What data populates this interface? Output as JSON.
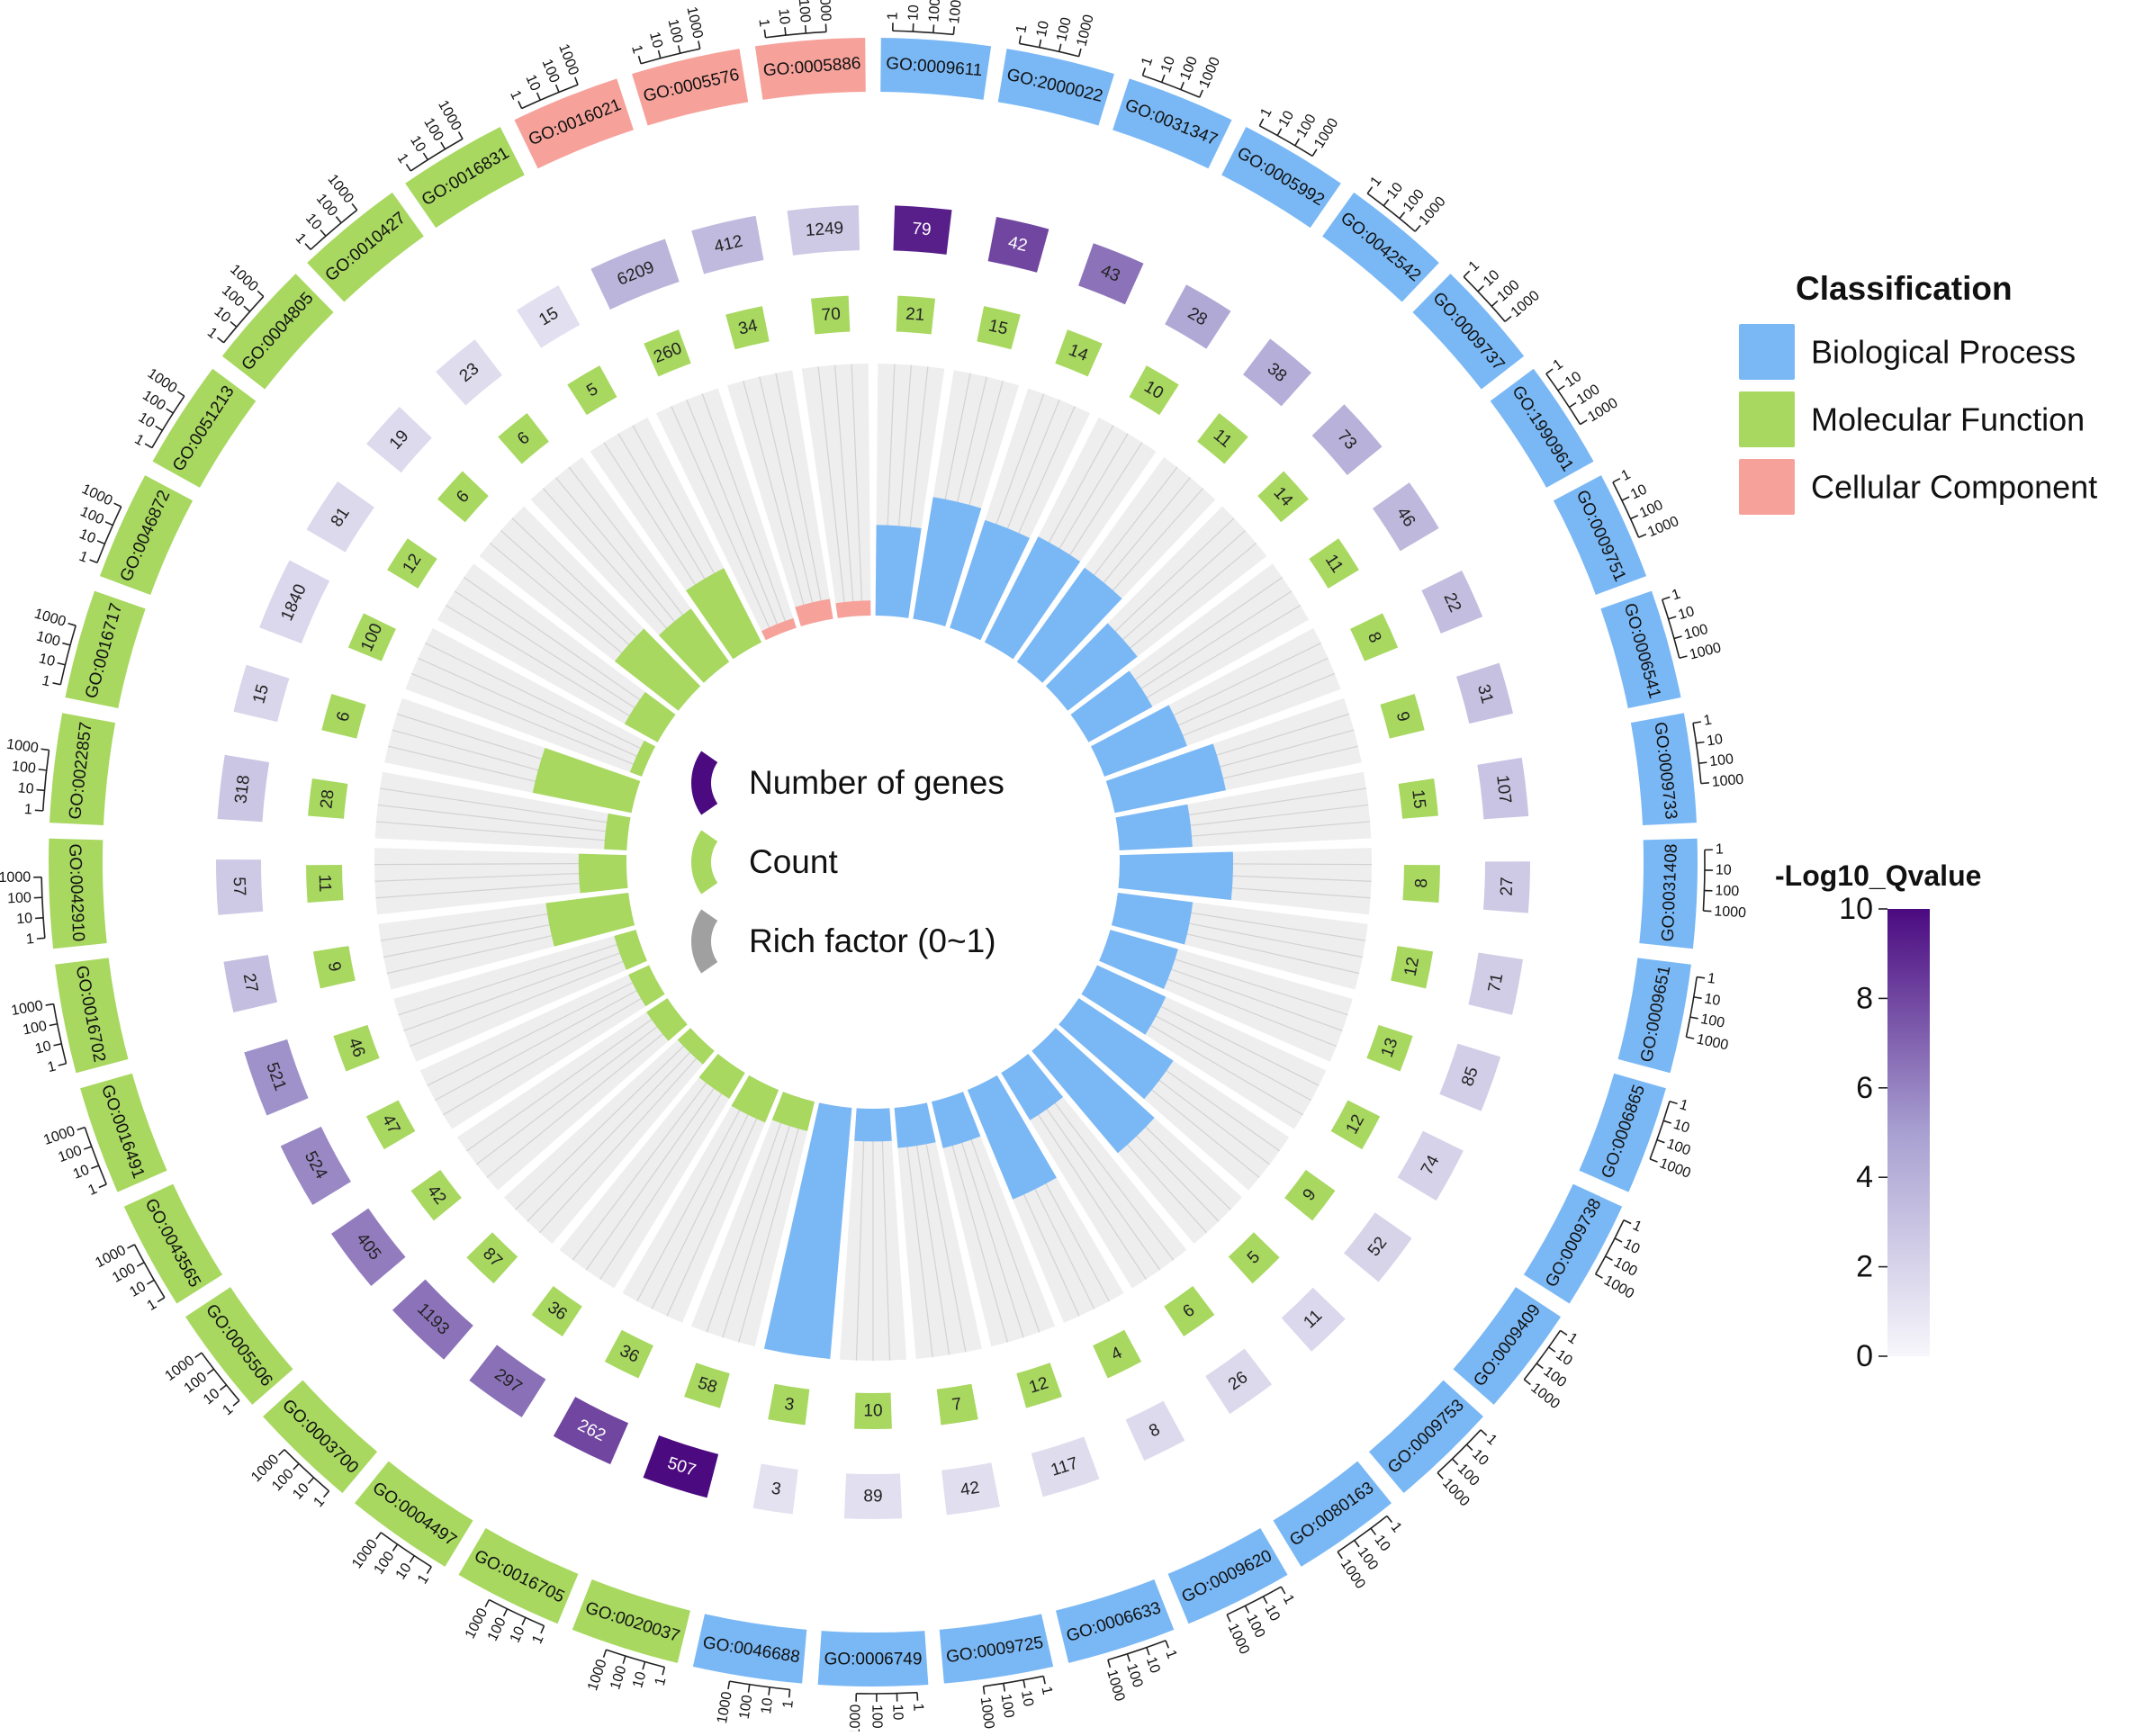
{
  "chart_data": {
    "type": "circular-bar",
    "tick_labels": [
      "1",
      "10",
      "100",
      "1000"
    ],
    "terms": [
      {
        "id": "GO:0009611",
        "class": "Biological Process",
        "number_of_genes": 79,
        "count": 21,
        "rich_factor": 0.36,
        "neg_log10_q": 9.3
      },
      {
        "id": "GO:2000022",
        "class": "Biological Process",
        "number_of_genes": 42,
        "count": 15,
        "rich_factor": 0.49,
        "neg_log10_q": 8.0
      },
      {
        "id": "GO:0031347",
        "class": "Biological Process",
        "number_of_genes": 43,
        "count": 14,
        "rich_factor": 0.45,
        "neg_log10_q": 6.5
      },
      {
        "id": "GO:0005992",
        "class": "Biological Process",
        "number_of_genes": 28,
        "count": 10,
        "rich_factor": 0.47,
        "neg_log10_q": 4.5
      },
      {
        "id": "GO:0042542",
        "class": "Biological Process",
        "number_of_genes": 38,
        "count": 11,
        "rich_factor": 0.46,
        "neg_log10_q": 4.2
      },
      {
        "id": "GO:0009737",
        "class": "Biological Process",
        "number_of_genes": 73,
        "count": 14,
        "rich_factor": 0.35,
        "neg_log10_q": 4.0
      },
      {
        "id": "GO:1990961",
        "class": "Biological Process",
        "number_of_genes": 46,
        "count": 11,
        "rich_factor": 0.29,
        "neg_log10_q": 3.6
      },
      {
        "id": "GO:0009751",
        "class": "Biological Process",
        "number_of_genes": 22,
        "count": 8,
        "rich_factor": 0.35,
        "neg_log10_q": 3.3
      },
      {
        "id": "GO:0006541",
        "class": "Biological Process",
        "number_of_genes": 31,
        "count": 9,
        "rich_factor": 0.45,
        "neg_log10_q": 3.1
      },
      {
        "id": "GO:0009733",
        "class": "Biological Process",
        "number_of_genes": 107,
        "count": 15,
        "rich_factor": 0.29,
        "neg_log10_q": 2.9
      },
      {
        "id": "GO:0031408",
        "class": "Biological Process",
        "number_of_genes": 27,
        "count": 8,
        "rich_factor": 0.45,
        "neg_log10_q": 2.6
      },
      {
        "id": "GO:0009651",
        "class": "Biological Process",
        "number_of_genes": 71,
        "count": 12,
        "rich_factor": 0.3,
        "neg_log10_q": 2.4
      },
      {
        "id": "GO:0006865",
        "class": "Biological Process",
        "number_of_genes": 85,
        "count": 13,
        "rich_factor": 0.28,
        "neg_log10_q": 2.3
      },
      {
        "id": "GO:0009738",
        "class": "Biological Process",
        "number_of_genes": 74,
        "count": 12,
        "rich_factor": 0.3,
        "neg_log10_q": 2.1
      },
      {
        "id": "GO:0009409",
        "class": "Biological Process",
        "number_of_genes": 52,
        "count": 9,
        "rich_factor": 0.45,
        "neg_log10_q": 2.0
      },
      {
        "id": "GO:0009753",
        "class": "Biological Process",
        "number_of_genes": 11,
        "count": 5,
        "rich_factor": 0.53,
        "neg_log10_q": 1.8
      },
      {
        "id": "GO:0080163",
        "class": "Biological Process",
        "number_of_genes": 26,
        "count": 6,
        "rich_factor": 0.22,
        "neg_log10_q": 1.7
      },
      {
        "id": "GO:0009620",
        "class": "Biological Process",
        "number_of_genes": 8,
        "count": 4,
        "rich_factor": 0.47,
        "neg_log10_q": 1.6
      },
      {
        "id": "GO:0006633",
        "class": "Biological Process",
        "number_of_genes": 117,
        "count": 12,
        "rich_factor": 0.19,
        "neg_log10_q": 1.5
      },
      {
        "id": "GO:0009725",
        "class": "Biological Process",
        "number_of_genes": 42,
        "count": 7,
        "rich_factor": 0.16,
        "neg_log10_q": 1.4
      },
      {
        "id": "GO:0006749",
        "class": "Biological Process",
        "number_of_genes": 89,
        "count": 10,
        "rich_factor": 0.13,
        "neg_log10_q": 1.3
      },
      {
        "id": "GO:0046688",
        "class": "Biological Process",
        "number_of_genes": 3,
        "count": 3,
        "rich_factor": 1.0,
        "neg_log10_q": 1.2
      },
      {
        "id": "GO:0020037",
        "class": "Molecular Function",
        "number_of_genes": 507,
        "count": 58,
        "rich_factor": 0.12,
        "neg_log10_q": 10.0
      },
      {
        "id": "GO:0016705",
        "class": "Molecular Function",
        "number_of_genes": 262,
        "count": 36,
        "rich_factor": 0.14,
        "neg_log10_q": 8.0
      },
      {
        "id": "GO:0004497",
        "class": "Molecular Function",
        "number_of_genes": 297,
        "count": 36,
        "rich_factor": 0.12,
        "neg_log10_q": 6.6
      },
      {
        "id": "GO:0003700",
        "class": "Molecular Function",
        "number_of_genes": 1193,
        "count": 87,
        "rich_factor": 0.07,
        "neg_log10_q": 6.5
      },
      {
        "id": "GO:0005506",
        "class": "Molecular Function",
        "number_of_genes": 405,
        "count": 42,
        "rich_factor": 0.1,
        "neg_log10_q": 6.2
      },
      {
        "id": "GO:0043565",
        "class": "Molecular Function",
        "number_of_genes": 524,
        "count": 47,
        "rich_factor": 0.09,
        "neg_log10_q": 5.8
      },
      {
        "id": "GO:0016491",
        "class": "Molecular Function",
        "number_of_genes": 521,
        "count": 46,
        "rich_factor": 0.09,
        "neg_log10_q": 5.5
      },
      {
        "id": "GO:0016702",
        "class": "Molecular Function",
        "number_of_genes": 27,
        "count": 9,
        "rich_factor": 0.33,
        "neg_log10_q": 3.2
      },
      {
        "id": "GO:0042910",
        "class": "Molecular Function",
        "number_of_genes": 57,
        "count": 11,
        "rich_factor": 0.19,
        "neg_log10_q": 2.6
      },
      {
        "id": "GO:0022857",
        "class": "Molecular Function",
        "number_of_genes": 318,
        "count": 28,
        "rich_factor": 0.09,
        "neg_log10_q": 2.8
      },
      {
        "id": "GO:0016717",
        "class": "Molecular Function",
        "number_of_genes": 15,
        "count": 6,
        "rich_factor": 0.4,
        "neg_log10_q": 1.9
      },
      {
        "id": "GO:0046872",
        "class": "Molecular Function",
        "number_of_genes": 1840,
        "count": 100,
        "rich_factor": 0.05,
        "neg_log10_q": 1.8
      },
      {
        "id": "GO:0051213",
        "class": "Molecular Function",
        "number_of_genes": 81,
        "count": 12,
        "rich_factor": 0.15,
        "neg_log10_q": 1.7
      },
      {
        "id": "GO:0004805",
        "class": "Molecular Function",
        "number_of_genes": 19,
        "count": 6,
        "rich_factor": 0.32,
        "neg_log10_q": 1.6
      },
      {
        "id": "GO:0010427",
        "class": "Molecular Function",
        "number_of_genes": 23,
        "count": 6,
        "rich_factor": 0.26,
        "neg_log10_q": 1.5
      },
      {
        "id": "GO:0016831",
        "class": "Molecular Function",
        "number_of_genes": 15,
        "count": 5,
        "rich_factor": 0.33,
        "neg_log10_q": 1.3
      },
      {
        "id": "GO:0016021",
        "class": "Cellular Component",
        "number_of_genes": 6209,
        "count": 260,
        "rich_factor": 0.04,
        "neg_log10_q": 3.8
      },
      {
        "id": "GO:0005576",
        "class": "Cellular Component",
        "number_of_genes": 412,
        "count": 34,
        "rich_factor": 0.08,
        "neg_log10_q": 3.5
      },
      {
        "id": "GO:0005886",
        "class": "Cellular Component",
        "number_of_genes": 1249,
        "count": 70,
        "rich_factor": 0.06,
        "neg_log10_q": 2.6
      }
    ],
    "legend": {
      "classification_title": "Classification",
      "classes": [
        {
          "name": "Biological Process",
          "color": "#7ab8f5"
        },
        {
          "name": "Molecular Function",
          "color": "#a8d860"
        },
        {
          "name": "Cellular Component",
          "color": "#f6a29b"
        }
      ],
      "center": {
        "number_of_genes": "Number of genes",
        "count": "Count",
        "rich_factor": "Rich factor (0~1)"
      },
      "colorbar": {
        "title": "-Log10_Qvalue",
        "ticks": [
          "0",
          "2",
          "4",
          "6",
          "8",
          "10"
        ],
        "min": 0,
        "max": 10,
        "low_color": "#f7f6fb",
        "mid_color": "#a8a0d1",
        "high_color": "#4b0a80"
      }
    },
    "colors": {
      "track_bg": "#eeeeee",
      "grid": "#d2d2d2",
      "count_box": "#a8d860",
      "neutral_icon": "#a0a0a0"
    }
  }
}
